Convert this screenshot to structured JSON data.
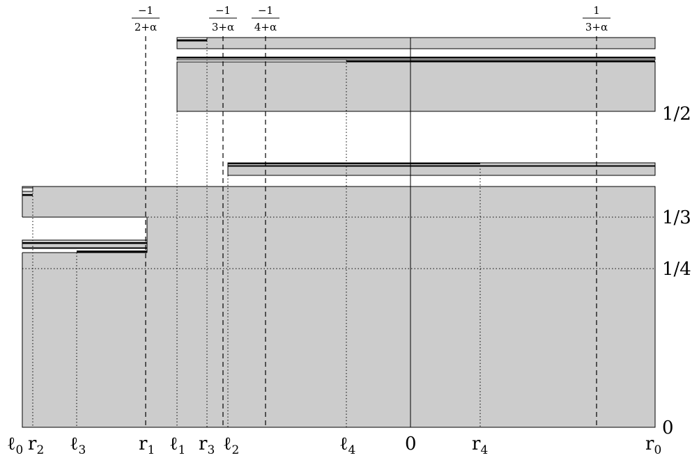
{
  "x_labels": {
    "l0": "ℓ",
    "l0_sub": "0",
    "r2": "r",
    "r2_sub": "2",
    "l3": "ℓ",
    "l3_sub": "3",
    "r1": "r",
    "r1_sub": "1",
    "l1": "ℓ",
    "l1_sub": "1",
    "r3": "r",
    "r3_sub": "3",
    "l2": "ℓ",
    "l2_sub": "2",
    "l4": "ℓ",
    "l4_sub": "4",
    "zero": "0",
    "r4": "r",
    "r4_sub": "4",
    "r0": "r",
    "r0_sub": "0"
  },
  "y_labels": {
    "half": "1/2",
    "third": "1/3",
    "quarter": "1/4",
    "zero": "0"
  },
  "top_labels": {
    "neg_2a": {
      "num": "−1",
      "den": "2+α"
    },
    "neg_3a": {
      "num": "−1",
      "den": "3+α"
    },
    "neg_4a": {
      "num": "−1",
      "den": "4+α"
    },
    "pos_3a": {
      "num": "1",
      "den": "3+α"
    }
  }
}
